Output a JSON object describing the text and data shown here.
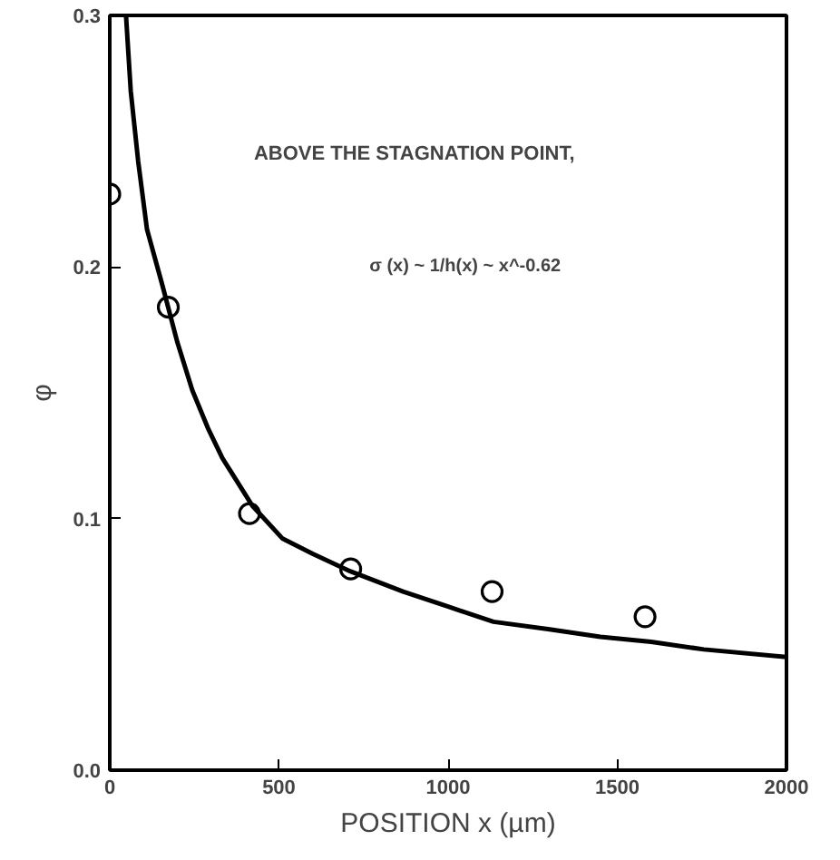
{
  "chart_data": {
    "type": "scatter",
    "xlabel": "POSITION x (µm)",
    "ylabel": "φ",
    "annotations": [
      "ABOVE THE STAGNATION POINT,",
      "σ (x) ~ 1/h(x) ~ x^-0.62"
    ],
    "xlim": [
      0,
      2000
    ],
    "ylim": [
      0,
      0.3
    ],
    "xticks": [
      0,
      500,
      1000,
      1500,
      2000
    ],
    "yticks": [
      {
        "value": 0,
        "label": "0.0"
      },
      {
        "value": 0.1,
        "label": "0.1"
      },
      {
        "value": 0.2,
        "label": "0.2"
      },
      {
        "value": 0.3,
        "label": "0.3"
      }
    ],
    "grid": false,
    "series": [
      {
        "marker": "circle",
        "color": "#000000",
        "x": [
          0,
          173,
          413,
          712,
          1130,
          1582
        ],
        "values": [
          0.229,
          0.184,
          0.102,
          0.08,
          0.071,
          0.061
        ]
      },
      {
        "type": "line",
        "marker": "none",
        "line_style": "solid",
        "color": "#000000",
        "x": [
          48,
          62,
          84,
          110,
          155,
          200,
          244,
          290,
          333,
          422,
          511,
          600,
          712,
          867,
          1000,
          1134,
          1300,
          1450,
          1600,
          1756,
          2000
        ],
        "values": [
          0.3,
          0.27,
          0.242,
          0.215,
          0.193,
          0.17,
          0.151,
          0.136,
          0.124,
          0.105,
          0.092,
          0.086,
          0.079,
          0.071,
          0.065,
          0.059,
          0.056,
          0.053,
          0.051,
          0.048,
          0.045
        ]
      }
    ]
  }
}
